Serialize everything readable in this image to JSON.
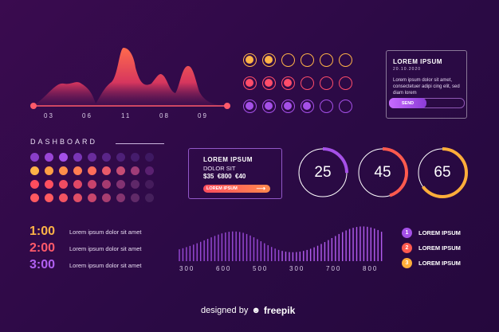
{
  "area_chart": {
    "x_labels": [
      "03",
      "06",
      "11",
      "08",
      "09"
    ]
  },
  "dashboard": {
    "title": "DASHBOARD"
  },
  "info_card": {
    "title": "LOREM IPSUM",
    "date": "20.10.2020",
    "body": "Lorem ipsum dolor sit amet, consectetuer adipi cing elit, sed diam lorem",
    "send_label": "SEND"
  },
  "price_card": {
    "title": "LOREM IPSUM",
    "subtitle": "DOLOR SIT",
    "prices": "$35  €800  €40",
    "button_label": "LOREM IPSUM"
  },
  "gauges": [
    {
      "value": "25",
      "fraction": 0.25,
      "color": "#a550e8"
    },
    {
      "value": "45",
      "fraction": 0.45,
      "color": "#ff5a4e"
    },
    {
      "value": "65",
      "fraction": 0.65,
      "color": "#ffae3a"
    }
  ],
  "times": [
    {
      "time": "1:00",
      "text": "Lorem ipsum dolor sit amet",
      "color": "#ffb347"
    },
    {
      "time": "2:00",
      "text": "Lorem ipsum dolor sit amet",
      "color": "#ff5a6a"
    },
    {
      "time": "3:00",
      "text": "Lorem ipsum dolor sit amet",
      "color": "#b060f0"
    }
  ],
  "bar_chart": {
    "x_labels": [
      "300",
      "600",
      "500",
      "300",
      "700",
      "800"
    ]
  },
  "legend": [
    {
      "num": "1",
      "label": "LOREM IPSUM",
      "color": "#a550e8"
    },
    {
      "num": "2",
      "label": "LOREM IPSUM",
      "color": "#ff5a4e"
    },
    {
      "num": "3",
      "label": "LOREM IPSUM",
      "color": "#ffae3a"
    }
  ],
  "footer": {
    "prefix": "designed by",
    "brand": "freepik"
  },
  "colors": {
    "purple": "#a550e8",
    "red": "#ff4d5e",
    "orange": "#ffae3a"
  }
}
